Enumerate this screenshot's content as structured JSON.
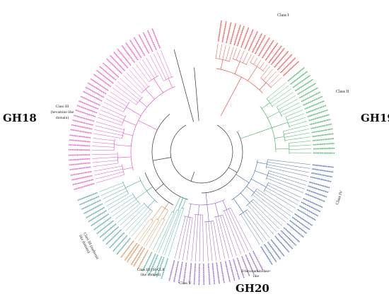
{
  "family_labels": {
    "gh18": "GH18",
    "gh19": "GH19",
    "gh20": "GH20"
  },
  "class_labels": {
    "class_i": "Class I",
    "class_ii": "Class II",
    "class_iii_hevamine": [
      "Class III",
      "(hevamine like",
      "domain)"
    ],
    "class_iv": "Class IV",
    "class_iii_narbonin": [
      "Class III (narbonin",
      "like domain)"
    ],
    "class_iii_si_clp": [
      "Class III (SI-CLP",
      "like domain)"
    ],
    "class_v": "Class V",
    "beta_hex": [
      "β-hexosaminidase-",
      "like"
    ]
  },
  "clade_colors": {
    "class_i": "#e8342e",
    "class_ii": "#2eaa55",
    "class_iv": "#3a5fa8",
    "gh20": "#8a4ec0",
    "class_v": "#3aa890",
    "class_iii_si_clp": "#d08040",
    "class_iii_narbonin": "#3a9a8a",
    "class_iii_hevamine": "#e040c0",
    "backbone": "#333333"
  }
}
